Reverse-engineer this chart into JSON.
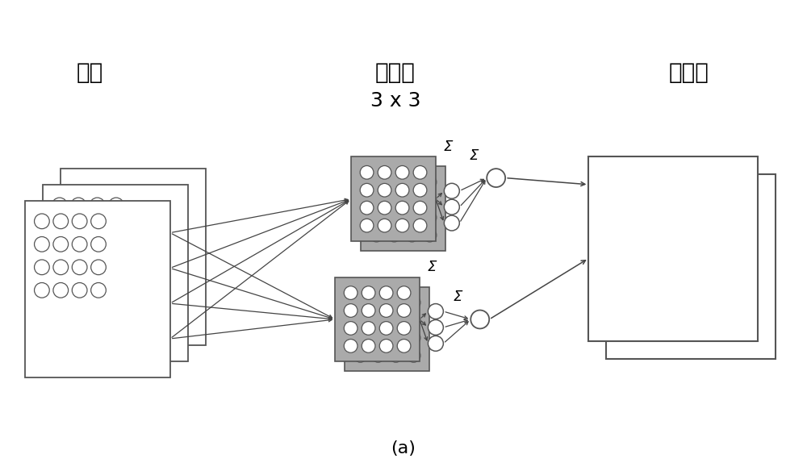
{
  "title": "(a)",
  "label_input": "输入",
  "label_kernel_line1": "卷积核",
  "label_kernel_line2": "3 x 3",
  "label_feature": "特征图",
  "bg_color": "#ffffff",
  "line_color": "#555555",
  "circle_face": "#ffffff",
  "circle_edge": "#555555",
  "kernel_gray": "#aaaaaa",
  "kernel_dark_gray": "#777777",
  "arrow_color": "#444444",
  "figsize": [
    10.0,
    5.79
  ],
  "dpi": 100,
  "xlim": [
    0,
    10
  ],
  "ylim": [
    0,
    5.79
  ]
}
